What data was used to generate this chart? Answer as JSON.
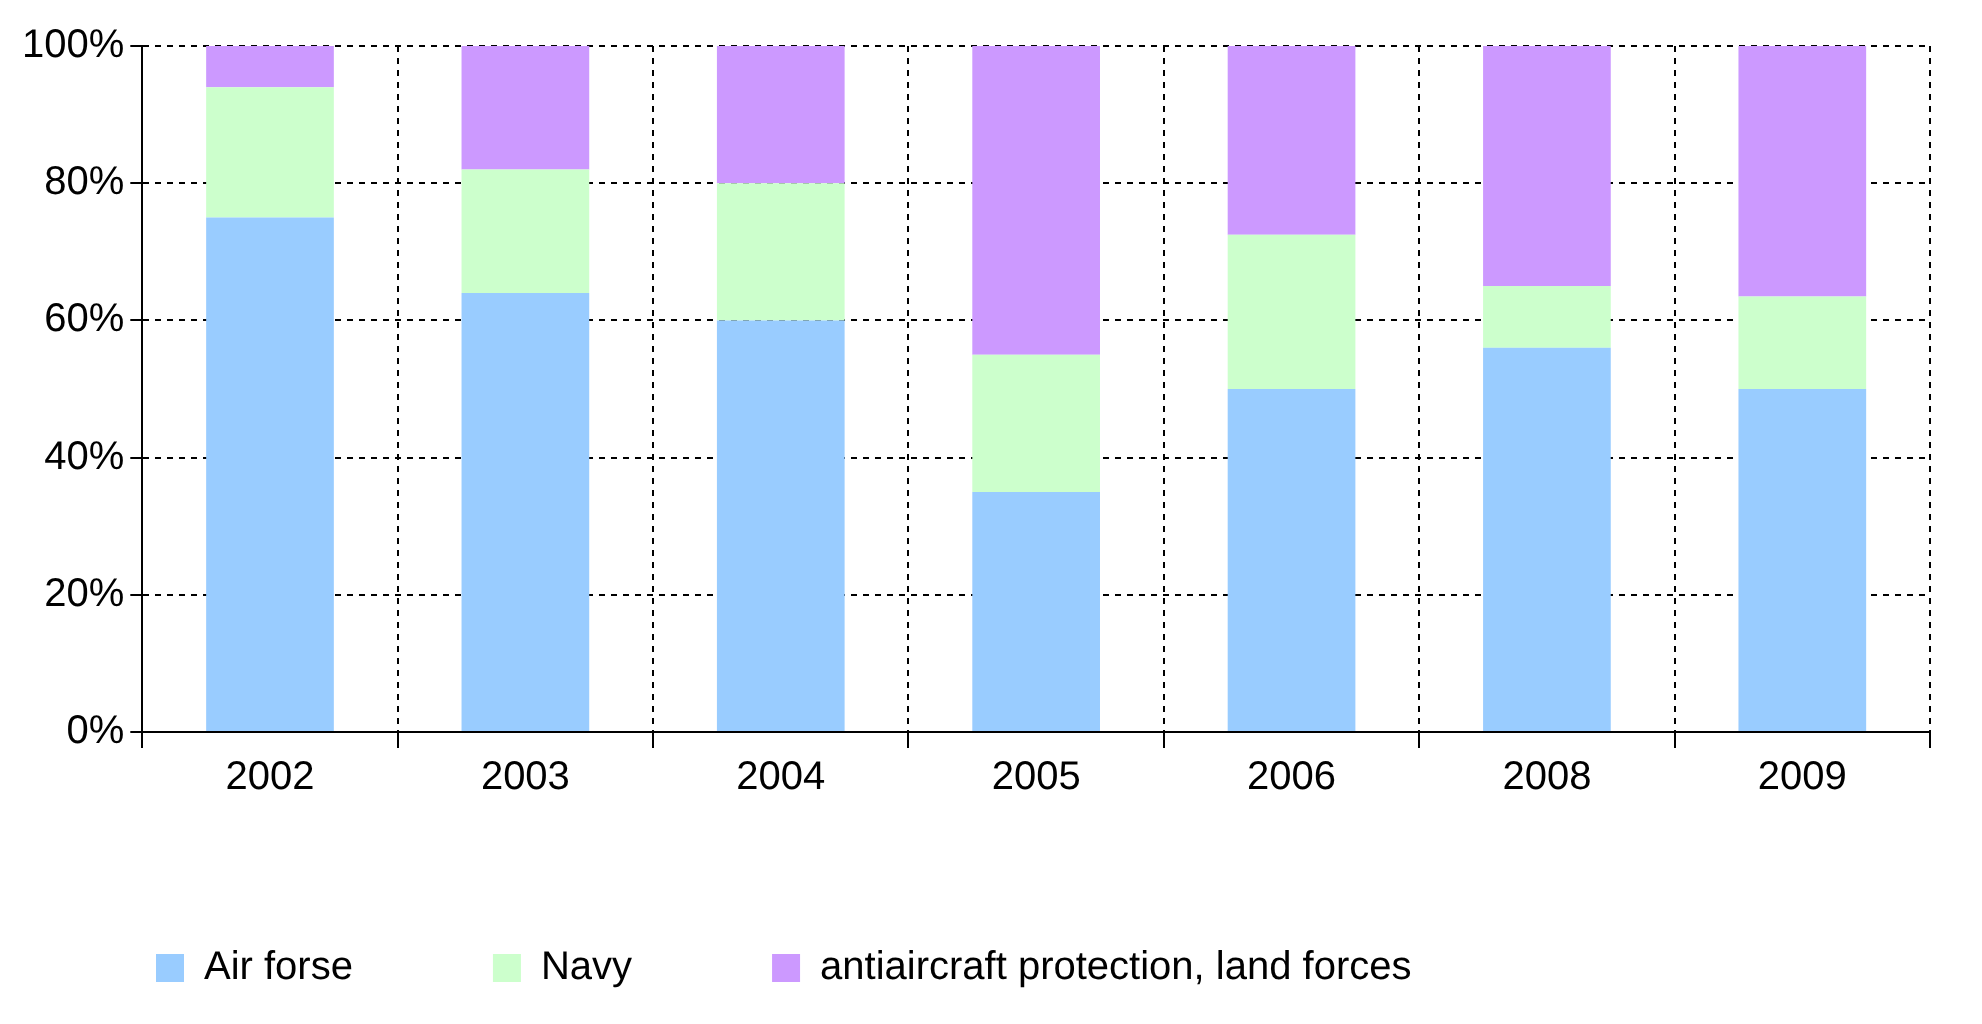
{
  "chart_data": {
    "type": "bar",
    "stacked": true,
    "categories": [
      "2002",
      "2003",
      "2004",
      "2005",
      "2006",
      "2008",
      "2009"
    ],
    "series": [
      {
        "name": "Air forse",
        "color": "#99ccff",
        "values": [
          75,
          64,
          60,
          35,
          50,
          56,
          50
        ]
      },
      {
        "name": "Navy",
        "color": "#ccffcc",
        "values": [
          19,
          18,
          20,
          20,
          22.5,
          9,
          13.5
        ]
      },
      {
        "name": "antiaircraft protection, land forces",
        "color": "#cc99ff",
        "values": [
          6,
          18,
          20,
          45,
          27.5,
          35,
          36.5
        ]
      }
    ],
    "ylim": [
      0,
      100
    ],
    "yticks": [
      {
        "value": 0,
        "label": "0%"
      },
      {
        "value": 20,
        "label": "20%"
      },
      {
        "value": 40,
        "label": "40%"
      },
      {
        "value": 60,
        "label": "60%"
      },
      {
        "value": 80,
        "label": "80%"
      },
      {
        "value": 100,
        "label": "100%"
      }
    ],
    "grid": true,
    "legend": "bottom"
  }
}
